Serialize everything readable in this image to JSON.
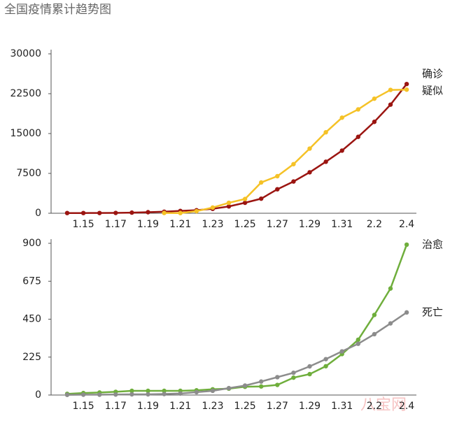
{
  "title": "全国疫情累计趋势图",
  "watermark": "八宝网",
  "chart_data": [
    {
      "type": "line",
      "categories": [
        null,
        "1.15",
        null,
        "1.17",
        null,
        "1.19",
        null,
        "1.21",
        null,
        "1.23",
        null,
        "1.25",
        null,
        "1.27",
        null,
        "1.29",
        null,
        "1.31",
        null,
        "2.2",
        null,
        "2.4"
      ],
      "ylim": [
        0,
        30000
      ],
      "yticks": [
        0,
        7500,
        15000,
        22500,
        30000
      ],
      "series": [
        {
          "name": "确诊",
          "color": "#9b1511",
          "values": [
            41,
            41,
            45,
            62,
            121,
            198,
            291,
            440,
            571,
            830,
            1287,
            1975,
            2744,
            4515,
            5974,
            7711,
            9692,
            11791,
            14380,
            17205,
            20438,
            24324
          ]
        },
        {
          "name": "疑似",
          "color": "#f5c227",
          "values": [
            null,
            null,
            null,
            null,
            null,
            null,
            54,
            37,
            393,
            1072,
            1965,
            2684,
            5794,
            6973,
            9239,
            12167,
            15238,
            17988,
            19544,
            21558,
            23214,
            23260
          ]
        }
      ]
    },
    {
      "type": "line",
      "categories": [
        null,
        "1.15",
        null,
        "1.17",
        null,
        "1.19",
        null,
        "1.21",
        null,
        "1.23",
        null,
        "1.25",
        null,
        "1.27",
        null,
        "1.29",
        null,
        "1.31",
        null,
        "2.2",
        null,
        "2.4"
      ],
      "ylim": [
        0,
        900
      ],
      "yticks": [
        0,
        225,
        450,
        675,
        900
      ],
      "series": [
        {
          "name": "治愈",
          "color": "#6fae3c",
          "values": [
            7,
            12,
            15,
            19,
            25,
            25,
            25,
            25,
            28,
            34,
            38,
            49,
            51,
            60,
            103,
            124,
            171,
            243,
            328,
            475,
            632,
            892
          ]
        },
        {
          "name": "死亡",
          "color": "#8c8c8c",
          "values": [
            1,
            2,
            2,
            3,
            4,
            4,
            6,
            9,
            17,
            25,
            41,
            56,
            80,
            106,
            132,
            170,
            213,
            259,
            304,
            361,
            425,
            490
          ]
        }
      ]
    }
  ]
}
